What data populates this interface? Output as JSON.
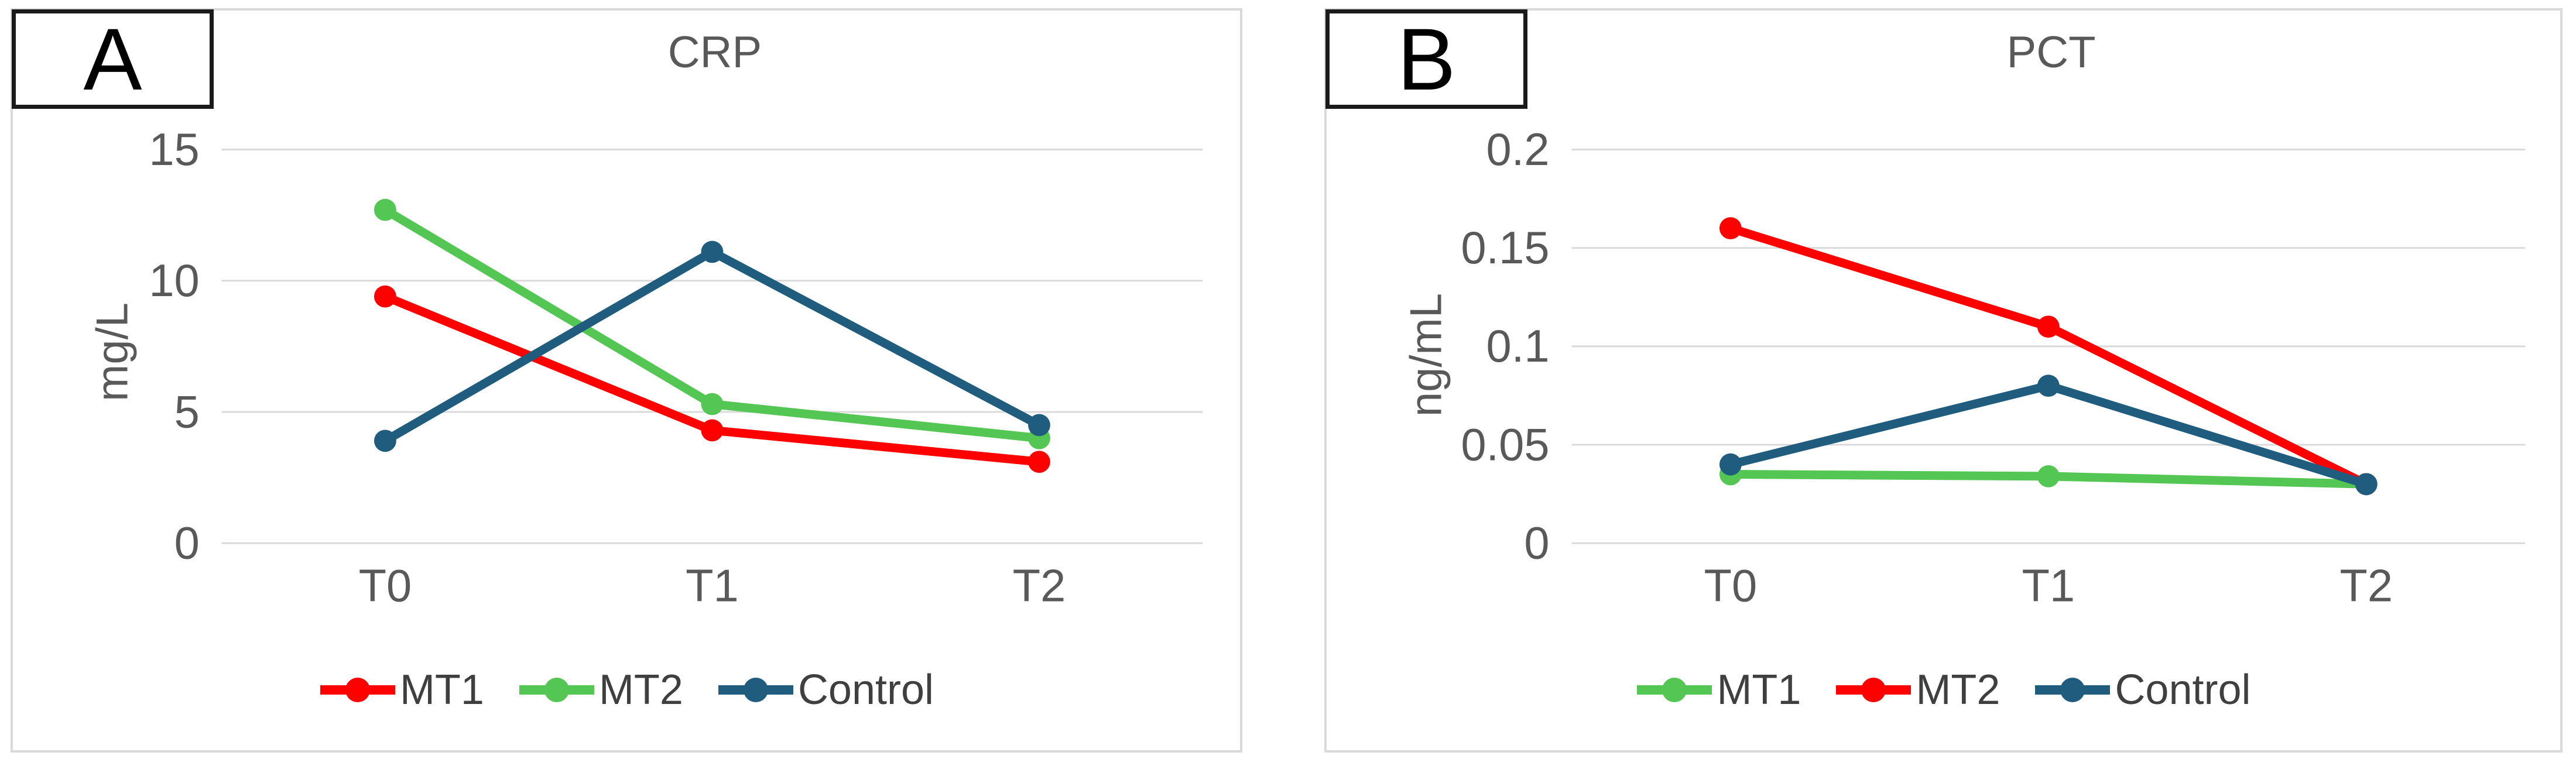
{
  "panel_labels": [
    "A",
    "B"
  ],
  "chart_data": [
    {
      "type": "line",
      "panel_label": "A",
      "title": "CRP",
      "ylabel": "mg/L",
      "xlabel": "",
      "categories": [
        "T0",
        "T1",
        "T2"
      ],
      "yticks": [
        "15",
        "10",
        "5",
        "0"
      ],
      "ytick_values": [
        15,
        10,
        5,
        0
      ],
      "ylim": [
        0,
        15
      ],
      "grid": true,
      "legend_position": "bottom",
      "series": [
        {
          "name": "MT1",
          "color": "#FF0000",
          "values": [
            9.4,
            4.3,
            3.1
          ]
        },
        {
          "name": "MT2",
          "color": "#53C653",
          "values": [
            12.7,
            5.3,
            4.0
          ]
        },
        {
          "name": "Control",
          "color": "#1F5C7D",
          "values": [
            3.9,
            11.1,
            4.5
          ]
        }
      ]
    },
    {
      "type": "line",
      "panel_label": "B",
      "title": "PCT",
      "ylabel": "ng/mL",
      "xlabel": "",
      "categories": [
        "T0",
        "T1",
        "T2"
      ],
      "yticks": [
        "0.2",
        "0.15",
        "0.1",
        "0.05",
        "0"
      ],
      "ytick_values": [
        0.2,
        0.15,
        0.1,
        0.05,
        0
      ],
      "ylim": [
        0,
        0.2
      ],
      "grid": true,
      "legend_position": "bottom",
      "series": [
        {
          "name": "MT1",
          "color": "#53C653",
          "values": [
            0.035,
            0.034,
            0.03
          ]
        },
        {
          "name": "MT2",
          "color": "#FF0000",
          "values": [
            0.16,
            0.11,
            0.03
          ]
        },
        {
          "name": "Control",
          "color": "#1F5C7D",
          "values": [
            0.04,
            0.08,
            0.03
          ]
        }
      ]
    }
  ],
  "colors": {
    "grid": "#D9D9D9",
    "panel_border": "#D9D9D9",
    "tick_text": "#595959",
    "title_text": "#595959",
    "legend_text": "#3F3F3F",
    "label_box_border": "#1A1A1A"
  }
}
